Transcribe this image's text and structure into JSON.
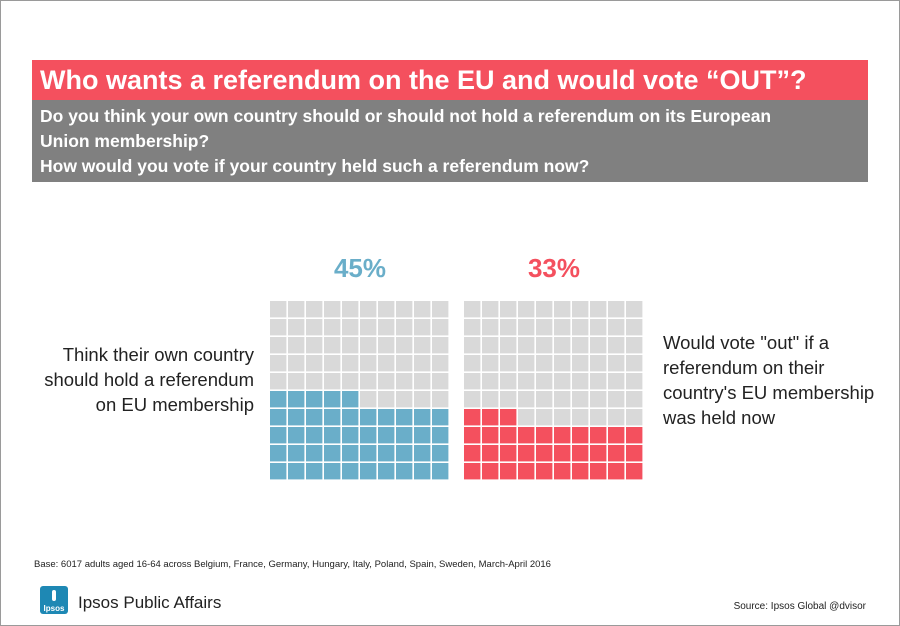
{
  "title": "Who wants a referendum on the EU and would vote “OUT”?",
  "questions": [
    "Do you think your own country should or should not hold a referendum on its European",
    "Union membership?",
    "How would you vote if your country held such a referendum now?"
  ],
  "colors": {
    "title_bg": "#f4505e",
    "question_bg": "#808080",
    "hold_referendum": "#6aaec9",
    "vote_out": "#f4505e",
    "empty_cell": "#d9d9d9"
  },
  "chart_data": {
    "type": "waffle",
    "grid": "10x10",
    "unit": "%",
    "series": [
      {
        "label": "Think their own country should  hold a referendum on  EU membership",
        "percent_label": "45%",
        "value": 45
      },
      {
        "label": "Would vote \"out\"  if a referendum on their country's EU membership was held now",
        "percent_label": "33%",
        "value": 33
      }
    ]
  },
  "labels": {
    "left": "Think their own country should  hold a referendum on  EU membership",
    "right": "Would vote \"out\"  if a referendum on their country's EU membership was held now"
  },
  "footer": {
    "base": "Base: 6017 adults aged 16-64 across Belgium, France, Germany, Hungary, Italy, Poland, Spain, Sweden, March-April 2016",
    "logo_text": "Ipsos",
    "brand": "Ipsos Public Affairs",
    "source": "Source: Ipsos Global @dvisor"
  }
}
